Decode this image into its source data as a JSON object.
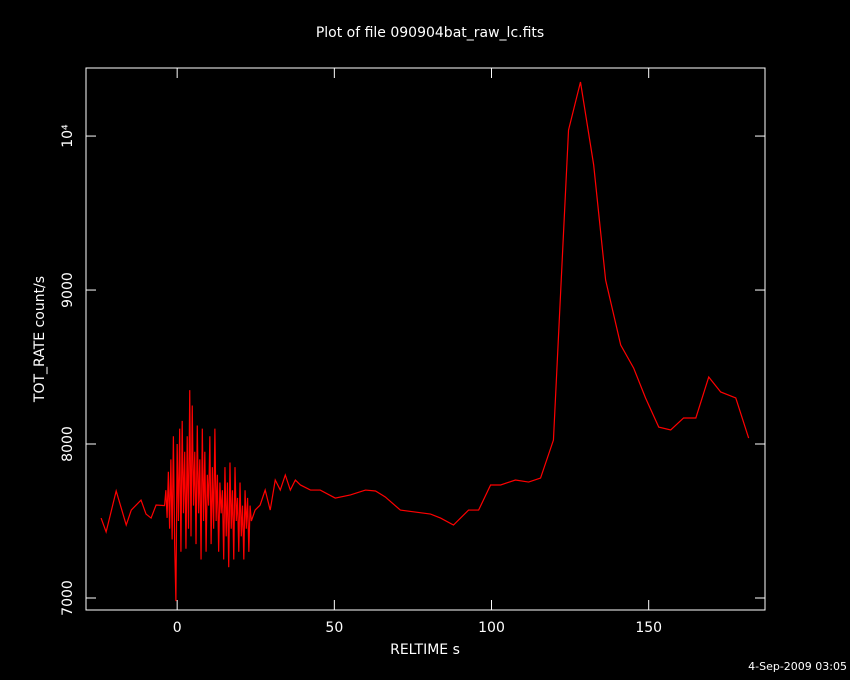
{
  "chart_data": {
    "type": "line",
    "title": "Plot of file 090904bat_raw_lc.fits",
    "x_label": "RELTIME  s",
    "y_label": "TOT_RATE  count/s",
    "timestamp": "4-Sep-2009 03:05",
    "xlim": [
      -29,
      187
    ],
    "ylim": [
      6922,
      10442
    ],
    "xticks": [
      0,
      50,
      100,
      150
    ],
    "yticks": [
      7000,
      8000,
      9000,
      {
        "value": 10000,
        "label": "10⁴"
      }
    ],
    "series": [
      {
        "name": "TOT_RATE",
        "color": "#ff0000",
        "x": [
          -24.2,
          -22.6,
          -19.4,
          -16.2,
          -14.6,
          -11.5,
          -9.9,
          -8.3,
          -6.7,
          -4.0,
          -3.6,
          -3.2,
          -2.8,
          -2.4,
          -2.0,
          -1.6,
          -1.2,
          -0.8,
          -0.4,
          0.0,
          0.4,
          0.8,
          1.2,
          1.6,
          2.0,
          2.4,
          2.8,
          3.2,
          3.6,
          4.0,
          4.4,
          4.8,
          5.2,
          5.6,
          6.0,
          6.4,
          6.8,
          7.2,
          7.6,
          8.0,
          8.4,
          8.8,
          9.2,
          9.6,
          10.0,
          10.4,
          10.8,
          11.2,
          11.6,
          12.0,
          12.4,
          12.8,
          13.2,
          13.6,
          14.0,
          14.4,
          14.8,
          15.2,
          15.6,
          16.0,
          16.4,
          16.8,
          17.2,
          17.6,
          18.0,
          18.4,
          18.8,
          19.2,
          19.6,
          20.0,
          20.4,
          20.8,
          21.2,
          21.6,
          22.0,
          22.4,
          22.8,
          23.2,
          23.6,
          24.8,
          26.4,
          28.0,
          29.6,
          31.2,
          32.8,
          34.4,
          36.0,
          37.6,
          39.2,
          42.4,
          45.5,
          50.3,
          55.1,
          59.9,
          63.1,
          66.2,
          71.0,
          75.8,
          80.6,
          83.8,
          87.9,
          92.7,
          95.9,
          99.7,
          102.9,
          107.6,
          111.8,
          115.6,
          119.7,
          124.5,
          128.3,
          132.5,
          136.3,
          141.1,
          145.2,
          149.0,
          153.2,
          157.0,
          161.1,
          165.0,
          169.1,
          172.9,
          177.7,
          181.8
        ],
        "values": [
          7519,
          7429,
          7695,
          7474,
          7571,
          7636,
          7545,
          7519,
          7604,
          7600,
          7700,
          7520,
          7820,
          7450,
          7900,
          7380,
          8050,
          7350,
          6980,
          8000,
          7500,
          8100,
          7300,
          8150,
          7550,
          7950,
          7320,
          8050,
          7450,
          8350,
          7400,
          8250,
          7600,
          7950,
          7350,
          8120,
          7550,
          7900,
          7250,
          8100,
          7500,
          7950,
          7300,
          7800,
          7600,
          8050,
          7350,
          7850,
          7450,
          8100,
          7500,
          7800,
          7300,
          7750,
          7550,
          7700,
          7250,
          7850,
          7400,
          7750,
          7200,
          7880,
          7450,
          7700,
          7250,
          7850,
          7500,
          7650,
          7300,
          7750,
          7400,
          7600,
          7250,
          7700,
          7450,
          7650,
          7300,
          7600,
          7500,
          7571,
          7604,
          7701,
          7571,
          7766,
          7701,
          7799,
          7701,
          7766,
          7734,
          7701,
          7701,
          7649,
          7669,
          7701,
          7695,
          7656,
          7571,
          7558,
          7545,
          7519,
          7474,
          7571,
          7571,
          7734,
          7734,
          7766,
          7753,
          7779,
          8026,
          10039,
          10351,
          9812,
          9065,
          8643,
          8494,
          8299,
          8110,
          8091,
          8169,
          8169,
          8435,
          8338,
          8299,
          8039
        ]
      }
    ]
  }
}
